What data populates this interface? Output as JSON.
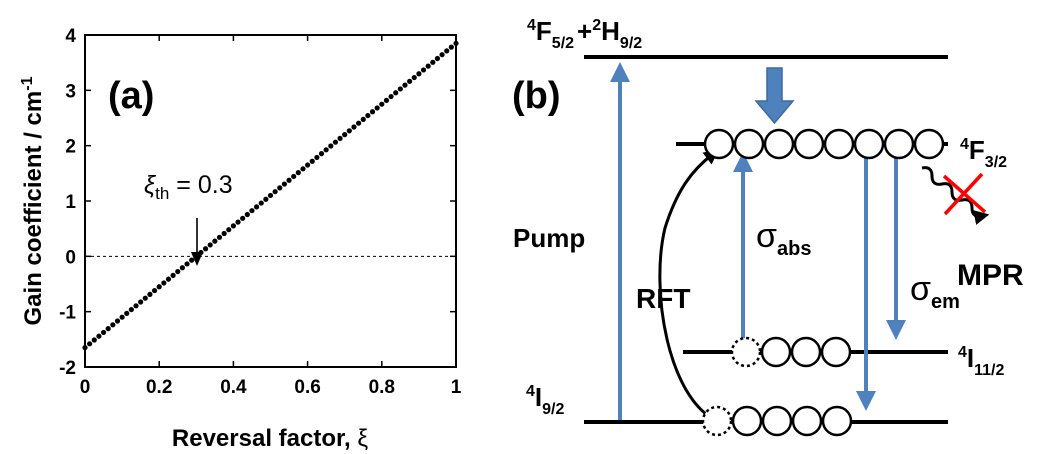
{
  "chart_data": {
    "type": "scatter",
    "panel_label": "(a)",
    "xlabel_main": "Reversal factor, ",
    "xlabel_symbol": "ξ",
    "ylabel_main": "Gain coefficient / cm",
    "ylabel_sup": "-1",
    "xlim": [
      0,
      1
    ],
    "ylim": [
      -2,
      4
    ],
    "x_ticks": [
      "0",
      "0.2",
      "0.4",
      "0.6",
      "0.8",
      "1"
    ],
    "y_ticks": [
      "-2",
      "-1",
      "0",
      "1",
      "2",
      "3",
      "4"
    ],
    "x_tick_values": [
      0,
      0.2,
      0.4,
      0.6,
      0.8,
      1
    ],
    "y_tick_values": [
      -2,
      -1,
      0,
      1,
      2,
      3,
      4
    ],
    "zero_line": true,
    "grid": false,
    "series": [
      {
        "x_start": 0,
        "x_end": 1,
        "y_start": -1.65,
        "y_end": 3.85,
        "point_count": 81
      }
    ],
    "annotation": {
      "symbol": "ξ",
      "subscript": "th",
      "text": " = 0.3",
      "x": 0.3,
      "y": 0
    }
  },
  "diagram": {
    "panel_label": "(b)",
    "levels": {
      "top": {
        "label": "F",
        "sup1": "4",
        "sub1": "5/2",
        "plus": "+",
        "sup2": "2",
        "label2": "H",
        "sub2": "9/2"
      },
      "f32": {
        "sup": "4",
        "label": "F",
        "sub": "3/2"
      },
      "i112": {
        "sup": "4",
        "label": "I",
        "sub": "11/2"
      },
      "i92": {
        "sup": "4",
        "label": "I",
        "sub": "9/2"
      }
    },
    "pump_label": "Pump",
    "rft_label": "RFT",
    "mpr_label": "MPR",
    "sigma_abs": {
      "symbol": "σ",
      "sub": "abs"
    },
    "sigma_em": {
      "symbol": "σ",
      "sub": "em"
    },
    "colors": {
      "arrow": "#4f81bd",
      "cross": "#ff0000",
      "line": "#000000"
    }
  }
}
